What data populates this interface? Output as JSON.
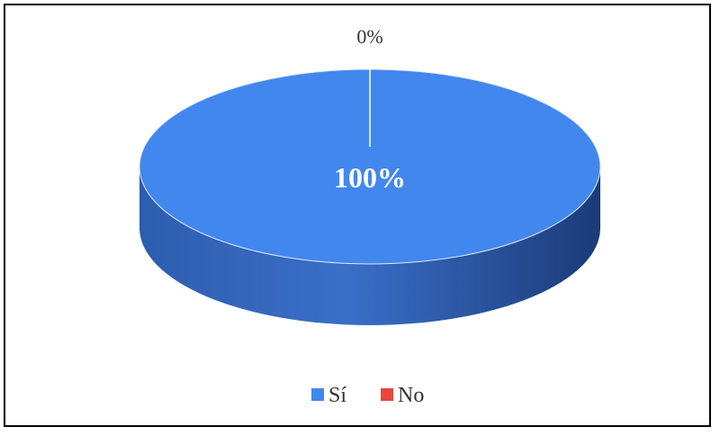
{
  "chart_data": {
    "type": "pie",
    "style": "3d",
    "title": "",
    "categories": [
      "Sí",
      "No"
    ],
    "values": [
      100,
      0
    ],
    "data_labels": [
      "100%",
      "0%"
    ],
    "colors": {
      "Sí": "#4287EE",
      "No": "#E8453C",
      "side_light": "#3A6FC8",
      "side_dark": "#1B3B78",
      "separator": "#FFFFFF"
    },
    "legend": {
      "position": "bottom",
      "entries": [
        {
          "label": "Sí",
          "color": "#4287EE"
        },
        {
          "label": "No",
          "color": "#E8453C"
        }
      ]
    }
  }
}
